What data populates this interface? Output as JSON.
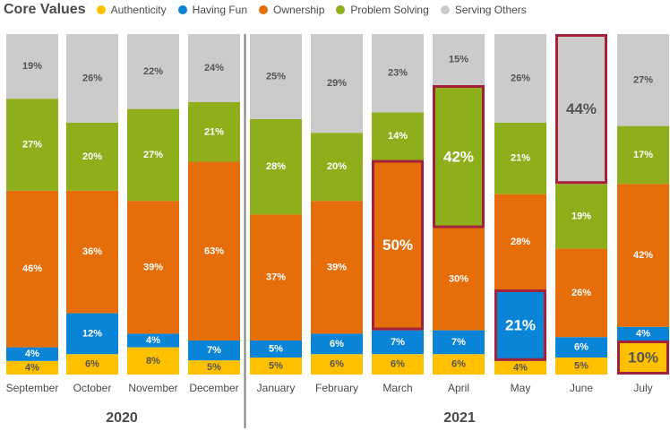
{
  "chart_data": {
    "type": "bar",
    "stacked": true,
    "normalized_percent": true,
    "legend_title": "Core Values",
    "legend_position": "top-left",
    "grid": false,
    "categories": [
      "September",
      "October",
      "November",
      "December",
      "January",
      "February",
      "March",
      "April",
      "May",
      "June",
      "July"
    ],
    "groups": [
      {
        "label": "2020",
        "categories": [
          "September",
          "October",
          "November",
          "December"
        ]
      },
      {
        "label": "2021",
        "categories": [
          "January",
          "February",
          "March",
          "April",
          "May",
          "June",
          "July"
        ]
      }
    ],
    "series": [
      {
        "name": "Authenticity",
        "color": "#ffc000",
        "values": [
          4,
          6,
          8,
          5,
          5,
          6,
          6,
          6,
          4,
          5,
          10
        ]
      },
      {
        "name": "Having Fun",
        "color": "#0a84d6",
        "values": [
          4,
          12,
          4,
          7,
          5,
          6,
          7,
          7,
          21,
          6,
          4
        ]
      },
      {
        "name": "Ownership",
        "color": "#e56d0a",
        "values": [
          46,
          36,
          39,
          63,
          37,
          39,
          50,
          30,
          28,
          26,
          42
        ]
      },
      {
        "name": "Problem Solving",
        "color": "#8fae1b",
        "values": [
          27,
          20,
          27,
          21,
          28,
          20,
          14,
          42,
          21,
          19,
          17
        ]
      },
      {
        "name": "Serving Others",
        "color": "#cbcbcb",
        "values": [
          19,
          26,
          22,
          24,
          25,
          29,
          23,
          15,
          26,
          44,
          27
        ]
      }
    ],
    "highlights": [
      {
        "category": "March",
        "series": "Ownership"
      },
      {
        "category": "April",
        "series": "Problem Solving"
      },
      {
        "category": "May",
        "series": "Having Fun"
      },
      {
        "category": "June",
        "series": "Serving Others"
      },
      {
        "category": "July",
        "series": "Authenticity"
      }
    ],
    "highlight_color": "#a4213a",
    "label_color": "#ffffff",
    "light_label_color": "#555555"
  }
}
